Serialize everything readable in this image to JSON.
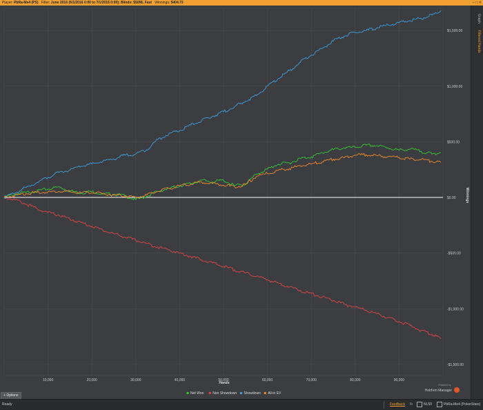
{
  "topbar": {
    "player_label": "Player:",
    "player": "PbRa-Me4 (PS)",
    "filter_label": "Filter:",
    "filter": "June 2016 (6/1/2016 0:00 to 7/1/2016 0:00); Blinds: $50NL Fast",
    "winnings_label": "Winnings:",
    "winnings": "$404.72"
  },
  "side_tabs": [
    "Graph",
    "Filtered Hands"
  ],
  "options_label": "Options",
  "status": {
    "ready": "Ready",
    "feedback": "Feedback",
    "fav": "fb",
    "stakes": "NL50",
    "player": "PbRa-Me4 (PokerStars)"
  },
  "branding": {
    "powered": "Powered by",
    "product": "Hold'em Manager"
  },
  "colors": {
    "net_won": "#33cc33",
    "non_showdown": "#e04545",
    "showdown": "#3aa0e0",
    "allin_ev": "#f08a2a",
    "zero_line": "#ffffff",
    "accent": "#f0a030"
  },
  "chart_data": {
    "type": "line",
    "xlabel": "Hands",
    "ylabel": "Winnings",
    "xlim": [
      0,
      100000
    ],
    "ylim": [
      -1600,
      1700
    ],
    "grid": true,
    "legend_position": "bottom-center",
    "x_ticks": [
      10000,
      20000,
      30000,
      40000,
      50000,
      60000,
      70000,
      80000,
      90000
    ],
    "x_tick_labels": [
      "10,000",
      "20,000",
      "30,000",
      "40,000",
      "50,000",
      "60,000",
      "70,000",
      "80,000",
      "90,000"
    ],
    "y_ticks": [
      1500,
      1000,
      500,
      0,
      -500,
      -1000,
      -1500
    ],
    "y_tick_labels": [
      "$1,500.00",
      "$1,000.00",
      "$500.00",
      "$0.00",
      "-$500.00",
      "-$1,000.00",
      "-$1,500.00"
    ],
    "series": [
      {
        "name": "Net Won",
        "color": "#33cc33",
        "x": [
          0,
          2500,
          5000,
          7500,
          10000,
          12500,
          15000,
          17500,
          20000,
          22500,
          25000,
          27500,
          30000,
          32500,
          35000,
          37500,
          40000,
          42500,
          45000,
          47500,
          50000,
          52500,
          55000,
          57500,
          60000,
          62500,
          65000,
          67500,
          70000,
          72500,
          75000,
          77500,
          80000,
          82500,
          85000,
          87500,
          90000,
          92500,
          95000,
          97500,
          99500
        ],
        "y": [
          0,
          30,
          45,
          60,
          75,
          95,
          60,
          40,
          55,
          30,
          30,
          15,
          -20,
          10,
          55,
          80,
          105,
          125,
          155,
          140,
          155,
          105,
          120,
          210,
          255,
          300,
          310,
          350,
          365,
          400,
          430,
          445,
          450,
          470,
          465,
          445,
          425,
          435,
          415,
          390,
          405
        ]
      },
      {
        "name": "Non Showdown",
        "color": "#e04545",
        "x": [
          0,
          2500,
          5000,
          7500,
          10000,
          12500,
          15000,
          17500,
          20000,
          22500,
          25000,
          27500,
          30000,
          32500,
          35000,
          37500,
          40000,
          42500,
          45000,
          47500,
          50000,
          52500,
          55000,
          57500,
          60000,
          62500,
          65000,
          67500,
          70000,
          72500,
          75000,
          77500,
          80000,
          82500,
          85000,
          87500,
          90000,
          92500,
          95000,
          97500,
          99500
        ],
        "y": [
          0,
          -20,
          -60,
          -100,
          -135,
          -160,
          -195,
          -225,
          -260,
          -295,
          -325,
          -355,
          -385,
          -415,
          -445,
          -470,
          -500,
          -530,
          -560,
          -590,
          -620,
          -650,
          -680,
          -710,
          -740,
          -770,
          -805,
          -835,
          -865,
          -895,
          -925,
          -960,
          -985,
          -1015,
          -1045,
          -1080,
          -1115,
          -1150,
          -1195,
          -1230,
          -1270
        ]
      },
      {
        "name": "Showdown",
        "color": "#3aa0e0",
        "x": [
          0,
          2500,
          5000,
          7500,
          10000,
          12500,
          15000,
          17500,
          20000,
          22500,
          25000,
          27500,
          30000,
          32500,
          35000,
          37500,
          40000,
          42500,
          45000,
          47500,
          50000,
          52500,
          55000,
          57500,
          60000,
          62500,
          65000,
          67500,
          70000,
          72500,
          75000,
          77500,
          80000,
          82500,
          85000,
          87500,
          90000,
          92500,
          95000,
          97500,
          99500
        ],
        "y": [
          0,
          40,
          90,
          135,
          180,
          225,
          245,
          280,
          300,
          325,
          345,
          380,
          390,
          430,
          520,
          570,
          600,
          650,
          690,
          730,
          770,
          815,
          865,
          915,
          1000,
          1070,
          1140,
          1215,
          1280,
          1340,
          1405,
          1450,
          1485,
          1500,
          1525,
          1550,
          1570,
          1590,
          1610,
          1640,
          1680
        ]
      },
      {
        "name": "All-in EV",
        "color": "#f08a2a",
        "x": [
          0,
          2500,
          5000,
          7500,
          10000,
          12500,
          15000,
          17500,
          20000,
          22500,
          25000,
          27500,
          30000,
          32500,
          35000,
          37500,
          40000,
          42500,
          45000,
          47500,
          50000,
          52500,
          55000,
          57500,
          60000,
          62500,
          65000,
          67500,
          70000,
          72500,
          75000,
          77500,
          80000,
          82500,
          85000,
          87500,
          90000,
          92500,
          95000,
          97500,
          99500
        ],
        "y": [
          0,
          20,
          35,
          45,
          50,
          55,
          50,
          40,
          45,
          35,
          20,
          15,
          0,
          20,
          55,
          80,
          105,
          120,
          140,
          125,
          110,
          95,
          115,
          190,
          215,
          245,
          260,
          285,
          300,
          320,
          345,
          355,
          380,
          385,
          375,
          365,
          360,
          345,
          340,
          325,
          315
        ]
      }
    ]
  }
}
